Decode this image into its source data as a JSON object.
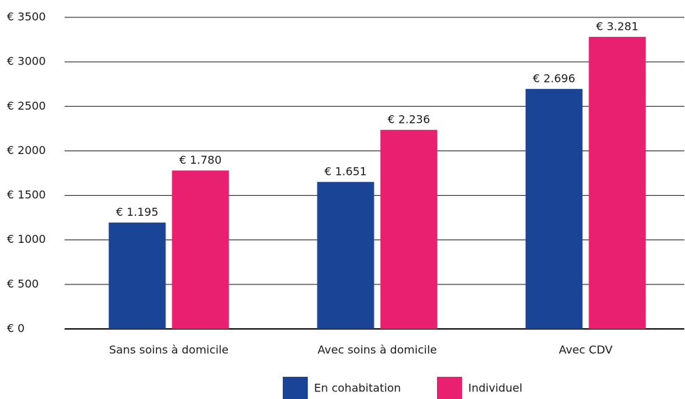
{
  "chart_data": {
    "type": "bar",
    "categories": [
      "Sans soins à domicile",
      "Avec soins à domicile",
      "Avec CDV"
    ],
    "series": [
      {
        "name": "En cohabitation",
        "color": "#1a4596",
        "values": [
          1195,
          1651,
          2696
        ],
        "value_labels": [
          "€ 1.195",
          "€ 1.651",
          "€ 2.696"
        ]
      },
      {
        "name": "Individuel",
        "color": "#e8206f",
        "values": [
          1780,
          2236,
          3281
        ],
        "value_labels": [
          "€ 1.780",
          "€ 2.236",
          "€ 3.281"
        ]
      }
    ],
    "ylim": [
      0,
      3500
    ],
    "yticks": [
      {
        "value": 0,
        "label": "€ 0"
      },
      {
        "value": 500,
        "label": "€ 500"
      },
      {
        "value": 1000,
        "label": "€ 1000"
      },
      {
        "value": 1500,
        "label": "€ 1500"
      },
      {
        "value": 2000,
        "label": "€ 2000"
      },
      {
        "value": 2500,
        "label": "€ 2500"
      },
      {
        "value": 3000,
        "label": "€ 3000"
      },
      {
        "value": 3500,
        "label": "€ 3500"
      }
    ],
    "grid": true,
    "legend": "bottom"
  }
}
